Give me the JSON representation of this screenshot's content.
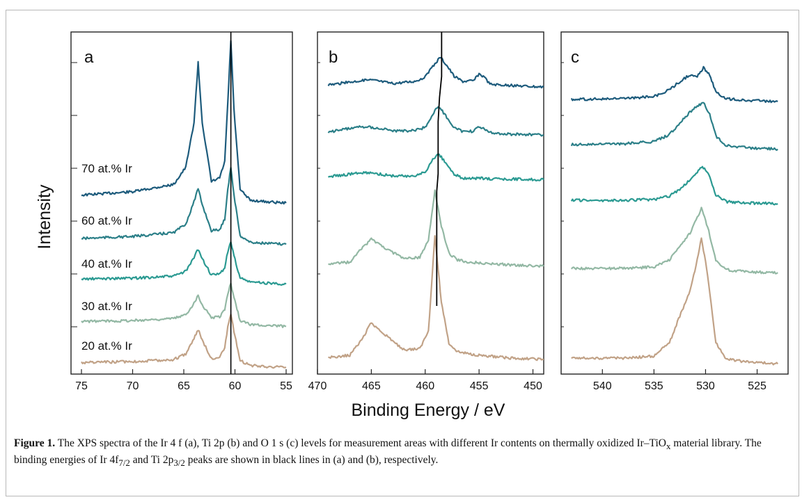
{
  "figure": {
    "ylabel": "Intensity",
    "xlabel": "Binding Energy / eV"
  },
  "colors": {
    "70": "#1d5b7c",
    "60": "#2b7f88",
    "40": "#2b9a92",
    "30": "#93b8a4",
    "20": "#c1a287"
  },
  "caption": {
    "label": "Figure 1.",
    "text1": " The XPS spectra of the Ir 4 f (a), Ti 2p (b) and O 1 s (c) levels for measurement areas with different Ir contents on thermally oxidized Ir–TiO",
    "sub_x": "x",
    "text2": " material library. The binding energies of Ir 4f",
    "sub_72": "7/2",
    "text3": " and Ti 2p",
    "sub_32": "3/2",
    "text4": " peaks are shown in black lines in (a) and (b), respectively."
  },
  "chart_data": [
    {
      "type": "line",
      "panel": "a",
      "xlim": [
        75,
        55
      ],
      "xticks": [
        75,
        70,
        65,
        60,
        55
      ],
      "reference_line": 60.4,
      "series": [
        {
          "name": "70 at.% Ir",
          "key": "70",
          "x": [
            75,
            70,
            66,
            64.8,
            64,
            63.6,
            63.2,
            62.3,
            61.5,
            61,
            60.7,
            60.4,
            60.1,
            59.5,
            58.5,
            57,
            55
          ],
          "y": [
            0.5,
            0.75,
            1.3,
            2.6,
            6.0,
            10.5,
            6.0,
            1.5,
            1.8,
            3.0,
            7.5,
            12.2,
            7.0,
            0.9,
            0.1,
            0.0,
            -0.1
          ]
        },
        {
          "name": "60 at.% Ir",
          "key": "60",
          "x": [
            75,
            70,
            66,
            64.8,
            64,
            63.6,
            63.2,
            62.3,
            61.5,
            61,
            60.7,
            60.4,
            60.1,
            59.5,
            58.5,
            57,
            55
          ],
          "y": [
            0.5,
            0.7,
            1.1,
            2.0,
            4.3,
            5.6,
            4.0,
            1.3,
            1.4,
            2.5,
            5.6,
            7.8,
            5.0,
            0.8,
            0.1,
            0.0,
            -0.1
          ]
        },
        {
          "name": "40 at.% Ir",
          "key": "40",
          "x": [
            75,
            70,
            66,
            64.8,
            64,
            63.6,
            63.2,
            62.3,
            61.5,
            61,
            60.7,
            60.4,
            60.1,
            59.5,
            58.5,
            57,
            55
          ],
          "y": [
            0.4,
            0.5,
            0.7,
            1.2,
            2.6,
            3.5,
            2.5,
            0.8,
            0.9,
            1.6,
            3.2,
            4.2,
            2.8,
            0.5,
            0.1,
            0.0,
            -0.1
          ]
        },
        {
          "name": "30 at.% Ir",
          "key": "30",
          "x": [
            75,
            70,
            66,
            64.8,
            64,
            63.6,
            63.2,
            62.3,
            61.5,
            61,
            60.7,
            60.4,
            60.1,
            59.5,
            58.5,
            57,
            55
          ],
          "y": [
            0.4,
            0.5,
            0.7,
            1.1,
            2.3,
            3.1,
            2.1,
            0.8,
            0.9,
            1.6,
            3.3,
            4.3,
            2.9,
            0.5,
            0.1,
            0.0,
            -0.1
          ]
        },
        {
          "name": "20 at.% Ir",
          "key": "20",
          "x": [
            75,
            70,
            66,
            64.8,
            64,
            63.6,
            63.2,
            62.3,
            61.5,
            61,
            60.7,
            60.4,
            60.1,
            59.5,
            58.5,
            57,
            55
          ],
          "y": [
            0.4,
            0.5,
            0.7,
            1.3,
            2.9,
            3.8,
            2.7,
            0.8,
            1.0,
            1.9,
            4.0,
            5.3,
            3.6,
            0.6,
            0.1,
            0.0,
            -0.1
          ]
        }
      ]
    },
    {
      "type": "line",
      "panel": "b",
      "xlim": [
        470,
        449
      ],
      "xticks": [
        470,
        465,
        460,
        455,
        450
      ],
      "reference_line": 458.8,
      "series": [
        {
          "key": "70",
          "x": [
            469,
            466,
            465,
            463,
            461,
            460,
            459.3,
            458.6,
            458,
            457.3,
            456.5,
            455.5,
            455,
            454.6,
            454,
            452,
            449
          ],
          "y": [
            1.0,
            1.6,
            1.7,
            1.2,
            1.5,
            2.1,
            3.6,
            5.0,
            3.8,
            2.2,
            1.5,
            1.6,
            2.6,
            2.2,
            1.1,
            0.9,
            0.7
          ]
        },
        {
          "key": "60",
          "x": [
            469,
            466,
            465,
            463,
            461,
            460,
            459.3,
            458.8,
            458.2,
            457.3,
            456.5,
            455.5,
            455,
            454.6,
            454,
            452,
            449
          ],
          "y": [
            1.0,
            1.8,
            1.7,
            1.2,
            1.2,
            1.7,
            3.5,
            4.8,
            3.6,
            1.6,
            1.1,
            1.1,
            1.8,
            1.5,
            0.9,
            0.7,
            0.6
          ]
        },
        {
          "key": "40",
          "x": [
            469,
            466,
            465,
            463,
            461,
            460,
            459.4,
            458.8,
            458.2,
            457.3,
            456.5,
            455.5,
            455,
            454.6,
            454,
            452,
            449
          ],
          "y": [
            0.8,
            1.3,
            1.3,
            0.9,
            0.9,
            1.4,
            2.8,
            3.9,
            2.8,
            1.1,
            0.6,
            0.6,
            0.6,
            0.6,
            0.5,
            0.5,
            0.4
          ]
        },
        {
          "key": "30",
          "x": [
            469,
            467,
            465.8,
            465,
            464,
            462,
            460.5,
            459.7,
            459.1,
            458.5,
            457.8,
            457,
            456,
            455,
            452,
            449
          ],
          "y": [
            1.0,
            1.3,
            3.4,
            4.6,
            3.6,
            1.8,
            2.0,
            4.5,
            11.5,
            6.5,
            2.6,
            1.6,
            1.3,
            1.2,
            0.9,
            0.7
          ]
        },
        {
          "key": "20",
          "x": [
            469,
            467,
            465.8,
            465,
            464,
            462,
            460.5,
            459.7,
            459.1,
            458.5,
            457.8,
            457,
            456,
            455,
            452,
            449
          ],
          "y": [
            1.0,
            1.3,
            3.8,
            6.0,
            4.6,
            2.1,
            2.2,
            4.8,
            18.5,
            9.0,
            3.0,
            1.8,
            1.5,
            1.3,
            0.9,
            0.7
          ]
        }
      ]
    },
    {
      "type": "line",
      "panel": "c",
      "xlim": [
        544,
        522
      ],
      "xticks": [
        540,
        535,
        530,
        525
      ],
      "series": [
        {
          "key": "70",
          "x": [
            543,
            538,
            535,
            533.5,
            532.5,
            531.5,
            530.8,
            530.2,
            529.6,
            529,
            528,
            526,
            523
          ],
          "y": [
            0.9,
            1.0,
            1.4,
            2.6,
            4.1,
            5.3,
            5.0,
            6.6,
            5.2,
            2.2,
            1.0,
            0.7,
            0.5
          ]
        },
        {
          "key": "60",
          "x": [
            543,
            538,
            535,
            533.5,
            532.5,
            531.5,
            530.8,
            530.2,
            529.6,
            529,
            528,
            526,
            523
          ],
          "y": [
            1.0,
            1.1,
            1.4,
            2.3,
            3.8,
            5.3,
            6.0,
            6.5,
            5.0,
            2.1,
            0.9,
            0.6,
            0.4
          ]
        },
        {
          "key": "40",
          "x": [
            543,
            538,
            535,
            533.5,
            532.5,
            531.5,
            530.8,
            530.3,
            529.7,
            529,
            528,
            526,
            523
          ],
          "y": [
            0.9,
            0.9,
            1.0,
            1.5,
            2.5,
            3.8,
            5.0,
            5.8,
            4.6,
            1.7,
            0.7,
            0.5,
            0.4
          ]
        },
        {
          "key": "30",
          "x": [
            543,
            538,
            535,
            533.5,
            532.5,
            531.5,
            530.8,
            530.4,
            529.8,
            529,
            528,
            526,
            523
          ],
          "y": [
            1.0,
            1.0,
            1.2,
            2.2,
            4.1,
            6.1,
            8.4,
            9.6,
            7.0,
            2.2,
            0.8,
            0.5,
            0.4
          ]
        },
        {
          "key": "20",
          "x": [
            543,
            538,
            535,
            533.5,
            532.5,
            531.5,
            530.8,
            530.4,
            529.8,
            529,
            528,
            526,
            523
          ],
          "y": [
            1.0,
            1.0,
            1.2,
            2.6,
            5.3,
            7.9,
            11.1,
            13.3,
            9.6,
            2.6,
            0.9,
            0.6,
            0.4
          ]
        }
      ]
    }
  ]
}
